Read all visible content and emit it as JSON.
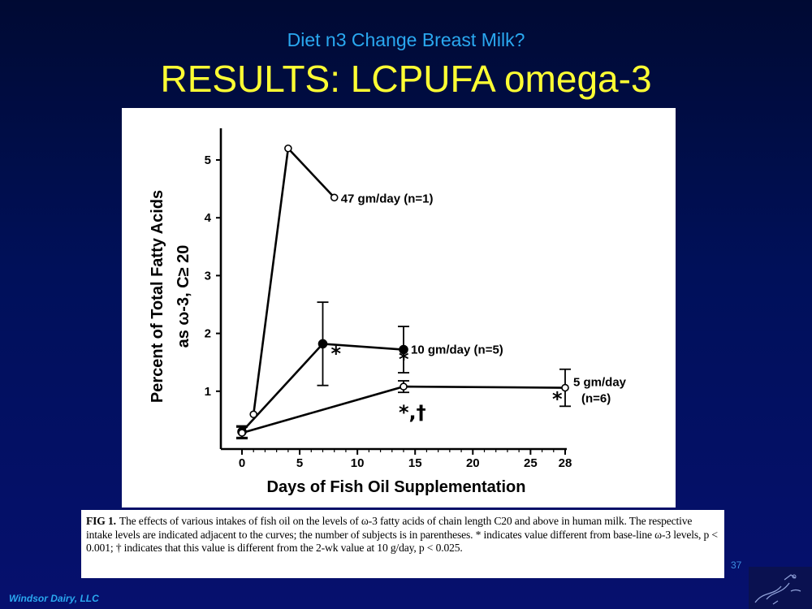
{
  "slide": {
    "subtitle": "Diet n3 Change Breast Milk?",
    "title": "RESULTS: LCPUFA omega-3",
    "footer": "Windsor Dairy, LLC",
    "slide_number": "37",
    "logo_icon": "birds-logo-icon"
  },
  "caption": {
    "label": "FIG 1.",
    "text": "The effects of various intakes of fish oil on the levels of ω-3 fatty acids of chain length C20 and above in human milk. The respective intake levels are indicated adjacent to the curves; the number of subjects is in parentheses. * indicates value different from base-line ω-3 levels, p < 0.001; † indicates that this value is different from the 2-wk value at 10 g/day, p < 0.025."
  },
  "chart_data": {
    "type": "line",
    "title": "",
    "xlabel": "Days of Fish Oil Supplementation",
    "ylabel_line1": "Percent of Total Fatty Acids",
    "ylabel_line2": "as ω-3, C≥ 20",
    "x_ticks": [
      "0",
      "5",
      "10",
      "15",
      "20",
      "25",
      "28"
    ],
    "x_tick_values": [
      0,
      5,
      10,
      15,
      20,
      25,
      28
    ],
    "y_ticks": [
      "1",
      "2",
      "3",
      "4",
      "5"
    ],
    "y_tick_values": [
      1,
      2,
      3,
      4,
      5
    ],
    "xlim": [
      0,
      28
    ],
    "ylim": [
      0,
      5.5
    ],
    "grid": false,
    "series": [
      {
        "name": "47 gm/day (n=1)",
        "marker": "open-circle",
        "points": [
          {
            "x": 1,
            "y": 0.6
          },
          {
            "x": 4,
            "y": 5.2
          },
          {
            "x": 8,
            "y": 4.35
          }
        ]
      },
      {
        "name": "10 gm/day (n=5)",
        "marker": "filled-circle",
        "points": [
          {
            "x": 0,
            "y": 0.3,
            "err": 0.1
          },
          {
            "x": 7,
            "y": 1.82,
            "err": 0.72,
            "annotation": "*"
          },
          {
            "x": 14,
            "y": 1.72,
            "err": 0.4,
            "annotation": "*"
          }
        ]
      },
      {
        "name_line1": "5 gm/day",
        "name_line2": "(n=6)",
        "marker": "open-circle",
        "points": [
          {
            "x": 0,
            "y": 0.28,
            "err": 0.1
          },
          {
            "x": 14,
            "y": 1.08,
            "err": 0.1,
            "annotation": "*,†"
          },
          {
            "x": 28,
            "y": 1.06,
            "err": 0.32,
            "annotation": "*"
          }
        ]
      }
    ]
  }
}
